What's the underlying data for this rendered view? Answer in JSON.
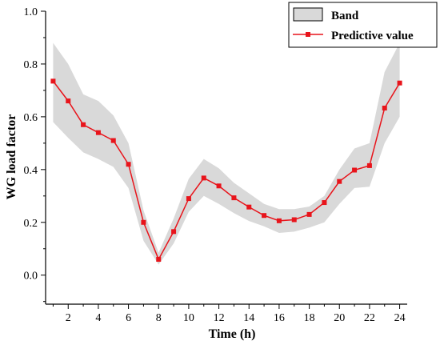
{
  "chart_data": {
    "type": "line",
    "xlabel": "Time (h)",
    "ylabel": "WG load factor",
    "xlim": [
      0.5,
      24.5
    ],
    "ylim": [
      -0.11,
      1.0
    ],
    "x_ticks": [
      2,
      4,
      6,
      8,
      10,
      12,
      14,
      16,
      18,
      20,
      22,
      24
    ],
    "y_ticks": [
      0.0,
      0.2,
      0.4,
      0.6,
      0.8,
      1.0
    ],
    "y_tick_labels": [
      "0.0",
      "0.2",
      "0.4",
      "0.6",
      "0.8",
      "1.0"
    ],
    "x": [
      1,
      2,
      3,
      4,
      5,
      6,
      7,
      8,
      9,
      10,
      11,
      12,
      13,
      14,
      15,
      16,
      17,
      18,
      19,
      20,
      21,
      22,
      23,
      24
    ],
    "series": [
      {
        "name": "Predictive value",
        "color": "#e8141b",
        "marker": "square",
        "values": [
          0.735,
          0.66,
          0.57,
          0.54,
          0.51,
          0.42,
          0.2,
          0.06,
          0.165,
          0.29,
          0.368,
          0.338,
          0.293,
          0.258,
          0.226,
          0.206,
          0.21,
          0.23,
          0.275,
          0.355,
          0.398,
          0.415,
          0.633,
          0.728
        ]
      }
    ],
    "band": {
      "name": "Band",
      "color": "#d9d9d9",
      "upper": [
        0.88,
        0.8,
        0.685,
        0.66,
        0.605,
        0.5,
        0.245,
        0.085,
        0.215,
        0.365,
        0.44,
        0.405,
        0.35,
        0.31,
        0.27,
        0.25,
        0.25,
        0.26,
        0.3,
        0.4,
        0.48,
        0.5,
        0.77,
        0.88
      ],
      "lower": [
        0.58,
        0.52,
        0.465,
        0.44,
        0.41,
        0.33,
        0.13,
        0.04,
        0.12,
        0.24,
        0.3,
        0.27,
        0.235,
        0.205,
        0.185,
        0.16,
        0.165,
        0.18,
        0.2,
        0.27,
        0.33,
        0.335,
        0.5,
        0.6
      ]
    },
    "legend": {
      "position": "top-right",
      "entries": [
        "Band",
        "Predictive value"
      ]
    },
    "grid": false
  }
}
